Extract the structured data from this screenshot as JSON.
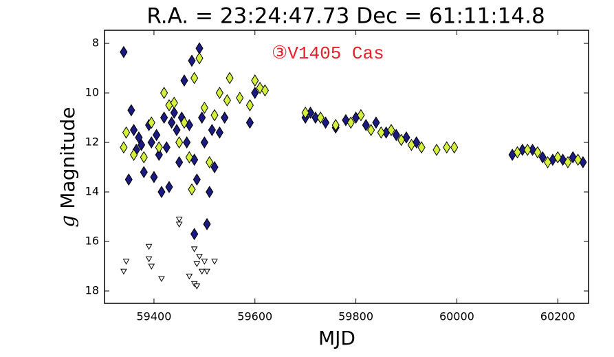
{
  "chart_data": {
    "type": "scatter",
    "title": "R.A. = 23:24:47.73   Dec = 61:11:14.8",
    "annotation": "③V1405 Cas",
    "x_label": "MJD",
    "y_label_italic": "g",
    "y_label": "Magnitude",
    "xlim": [
      59302,
      60261
    ],
    "ylim": [
      18.5,
      7.47
    ],
    "y_inverted": true,
    "xticks": [
      59400,
      59600,
      59800,
      60000,
      60200
    ],
    "yticks": [
      8,
      10,
      12,
      14,
      16,
      18
    ],
    "series": [
      {
        "color": "#1a1a80",
        "marker": "diamond",
        "x": [
          59340,
          59350,
          59355,
          59360,
          59365,
          59370,
          59375,
          59380,
          59390,
          59395,
          59400,
          59405,
          59410,
          59415,
          59420,
          59425,
          59430,
          59435,
          59440,
          59445,
          59450,
          59455,
          59460,
          59465,
          59470,
          59475,
          59480,
          59485,
          59490,
          59495,
          59500,
          59505,
          59510,
          59515,
          59520,
          59530,
          59540,
          59590,
          59600,
          59700,
          59710,
          59720,
          59740,
          59760,
          59780,
          59800,
          59820,
          59840,
          59860,
          59880,
          59900,
          59920,
          60110,
          60130,
          60150,
          60170,
          60190,
          60210,
          60230,
          60250,
          59480
        ],
        "values": [
          8.35,
          13.5,
          10.7,
          11.5,
          12.3,
          11.8,
          12.1,
          13.2,
          11.3,
          12.0,
          13.4,
          11.7,
          12.5,
          14.0,
          11.0,
          12.2,
          13.8,
          11.2,
          10.8,
          11.5,
          12.8,
          11.0,
          9.5,
          12.0,
          11.3,
          8.7,
          12.7,
          13.5,
          8.2,
          11.0,
          12.0,
          15.3,
          14.0,
          11.5,
          13.0,
          11.6,
          11.0,
          11.2,
          10.0,
          11.0,
          10.8,
          11.0,
          11.2,
          11.4,
          11.1,
          11.0,
          11.3,
          11.2,
          11.6,
          11.7,
          11.8,
          12.0,
          12.5,
          12.3,
          12.3,
          12.6,
          12.7,
          12.7,
          12.6,
          12.8,
          15.7
        ]
      },
      {
        "color": "#d4f03c",
        "marker": "diamond",
        "x": [
          59340,
          59345,
          59360,
          59380,
          59395,
          59410,
          59420,
          59430,
          59440,
          59450,
          59460,
          59470,
          59475,
          59480,
          59490,
          59500,
          59510,
          59520,
          59530,
          59545,
          59550,
          59570,
          59590,
          59600,
          59610,
          59620,
          59700,
          59730,
          59760,
          59790,
          59810,
          59830,
          59850,
          59870,
          59890,
          59910,
          59930,
          59960,
          59980,
          59995,
          60120,
          60140,
          60160,
          60180,
          60200,
          60220,
          60240
        ],
        "values": [
          12.2,
          11.6,
          12.5,
          12.6,
          11.2,
          12.2,
          10.0,
          10.5,
          10.4,
          12.0,
          11.2,
          12.6,
          13.9,
          9.4,
          8.6,
          10.6,
          12.8,
          10.9,
          10.0,
          10.3,
          9.4,
          10.2,
          10.5,
          9.5,
          9.8,
          9.9,
          10.8,
          11.0,
          11.3,
          11.2,
          10.9,
          11.5,
          11.6,
          11.5,
          11.9,
          12.1,
          12.2,
          12.3,
          12.2,
          12.2,
          12.4,
          12.3,
          12.4,
          12.8,
          12.6,
          12.8,
          12.7
        ]
      },
      {
        "color": "#ffffff",
        "marker": "triangle-down",
        "x": [
          59345,
          59340,
          59390,
          59390,
          59395,
          59415,
          59450,
          59450,
          59470,
          59480,
          59485,
          59480,
          59485,
          59490,
          59495,
          59500,
          59505,
          59520
        ],
        "values": [
          16.8,
          17.2,
          16.2,
          16.7,
          17.0,
          17.5,
          15.1,
          15.3,
          17.4,
          16.3,
          16.9,
          17.7,
          17.8,
          16.6,
          17.2,
          16.8,
          17.2,
          16.8
        ]
      }
    ]
  }
}
